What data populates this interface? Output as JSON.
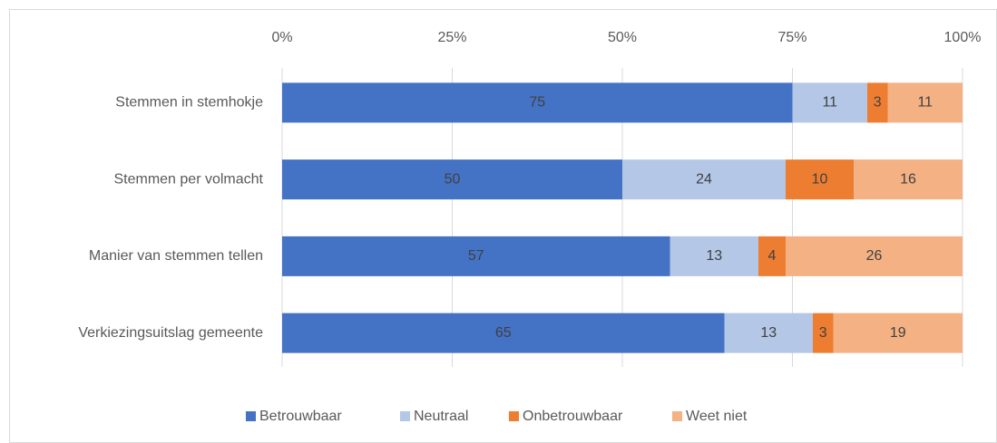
{
  "chart_data": {
    "type": "stacked_barh",
    "categories": [
      "Stemmen in stemhokje",
      "Stemmen per volmacht",
      "Manier van stemmen tellen",
      "Verkiezingsuitslag gemeente"
    ],
    "series": [
      {
        "name": "Betrouwbaar",
        "color": "#4472c4",
        "values": [
          75,
          50,
          57,
          65
        ]
      },
      {
        "name": "Neutraal",
        "color": "#b4c7e7",
        "values": [
          11,
          24,
          13,
          13
        ]
      },
      {
        "name": "Onbetrouwbaar",
        "color": "#ed7d31",
        "values": [
          3,
          10,
          4,
          3
        ]
      },
      {
        "name": "Weet niet",
        "color": "#f4b183",
        "values": [
          11,
          16,
          26,
          19
        ]
      }
    ],
    "xlim": [
      0,
      100
    ],
    "xticks": [
      {
        "value": 0,
        "label": "0%"
      },
      {
        "value": 25,
        "label": "25%"
      },
      {
        "value": 50,
        "label": "50%"
      },
      {
        "value": 75,
        "label": "75%"
      },
      {
        "value": 100,
        "label": "100%"
      }
    ],
    "grid": true,
    "legend": "bottom"
  }
}
